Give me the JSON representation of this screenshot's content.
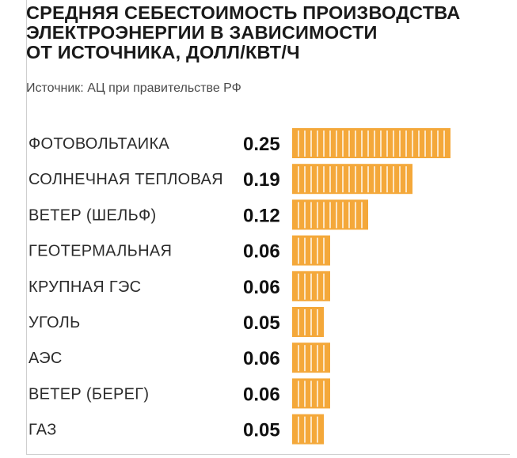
{
  "title_lines": [
    "СРЕДНЯЯ СЕБЕСТОИМОСТЬ ПРОИЗВОДСТВА",
    "ЭЛЕКТРОЭНЕРГИИ В ЗАВИСИМОСТИ",
    "ОТ ИСТОЧНИКА, ДОЛЛ/КВТ/Ч"
  ],
  "source": "Источник: АЦ при правительстве РФ",
  "colors": {
    "bar": "#f4a83a",
    "segment_divider": "#ffffff",
    "frame": "#cfcfcf"
  },
  "chart_data": {
    "type": "bar",
    "orientation": "horizontal",
    "title": "СРЕДНЯЯ СЕБЕСТОИМОСТЬ ПРОИЗВОДСТВА ЭЛЕКТРОЭНЕРГИИ В ЗАВИСИМОСТИ ОТ ИСТОЧНИКА, ДОЛЛ/КВТ/Ч",
    "categories": [
      "ФОТОВОЛЬТАИКА",
      "СОЛНЕЧНАЯ ТЕПЛОВАЯ",
      "ВЕТЕР (ШЕЛЬФ)",
      "ГЕОТЕРМАЛЬНАЯ",
      "КРУПНАЯ ГЭС",
      "УГОЛЬ",
      "АЭС",
      "ВЕТЕР (БЕРЕГ)",
      "ГАЗ"
    ],
    "values": [
      0.25,
      0.19,
      0.12,
      0.06,
      0.06,
      0.05,
      0.06,
      0.06,
      0.05
    ],
    "value_labels": [
      "0.25",
      "0.19",
      "0.12",
      "0.06",
      "0.06",
      "0.05",
      "0.06",
      "0.06",
      "0.05"
    ],
    "segment_unit": 0.01,
    "xlabel": "",
    "ylabel": "",
    "xlim": [
      0,
      0.25
    ],
    "grid": false,
    "legend": "none"
  }
}
